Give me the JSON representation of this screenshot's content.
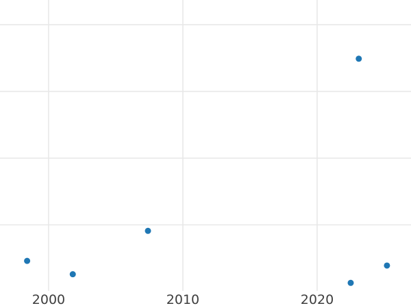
{
  "chart_data": {
    "type": "scatter",
    "title": "",
    "xlabel": "",
    "ylabel": "",
    "x_ticks": [
      {
        "value": 2000,
        "label": "2000"
      },
      {
        "value": 2010,
        "label": "2010"
      },
      {
        "value": 2020,
        "label": "2020"
      }
    ],
    "y_tick_labels": [],
    "y_gridlines": [
      1,
      2,
      3,
      4
    ],
    "xlim": [
      1996.38,
      2026.99
    ],
    "ylim": [
      0.01,
      4.37
    ],
    "grid": true,
    "legend": "none",
    "points": [
      {
        "x": 1998.4,
        "y": 0.46
      },
      {
        "x": 2001.8,
        "y": 0.26
      },
      {
        "x": 2007.4,
        "y": 0.91
      },
      {
        "x": 2022.5,
        "y": 0.13
      },
      {
        "x": 2023.1,
        "y": 3.49
      },
      {
        "x": 2025.2,
        "y": 0.39
      }
    ],
    "marker_diameter_px": 9,
    "colors": {
      "marker": "#1f77b4",
      "grid": "#e8e8e8",
      "tick_label": "#3d3d3d",
      "background": "#ffffff"
    }
  }
}
